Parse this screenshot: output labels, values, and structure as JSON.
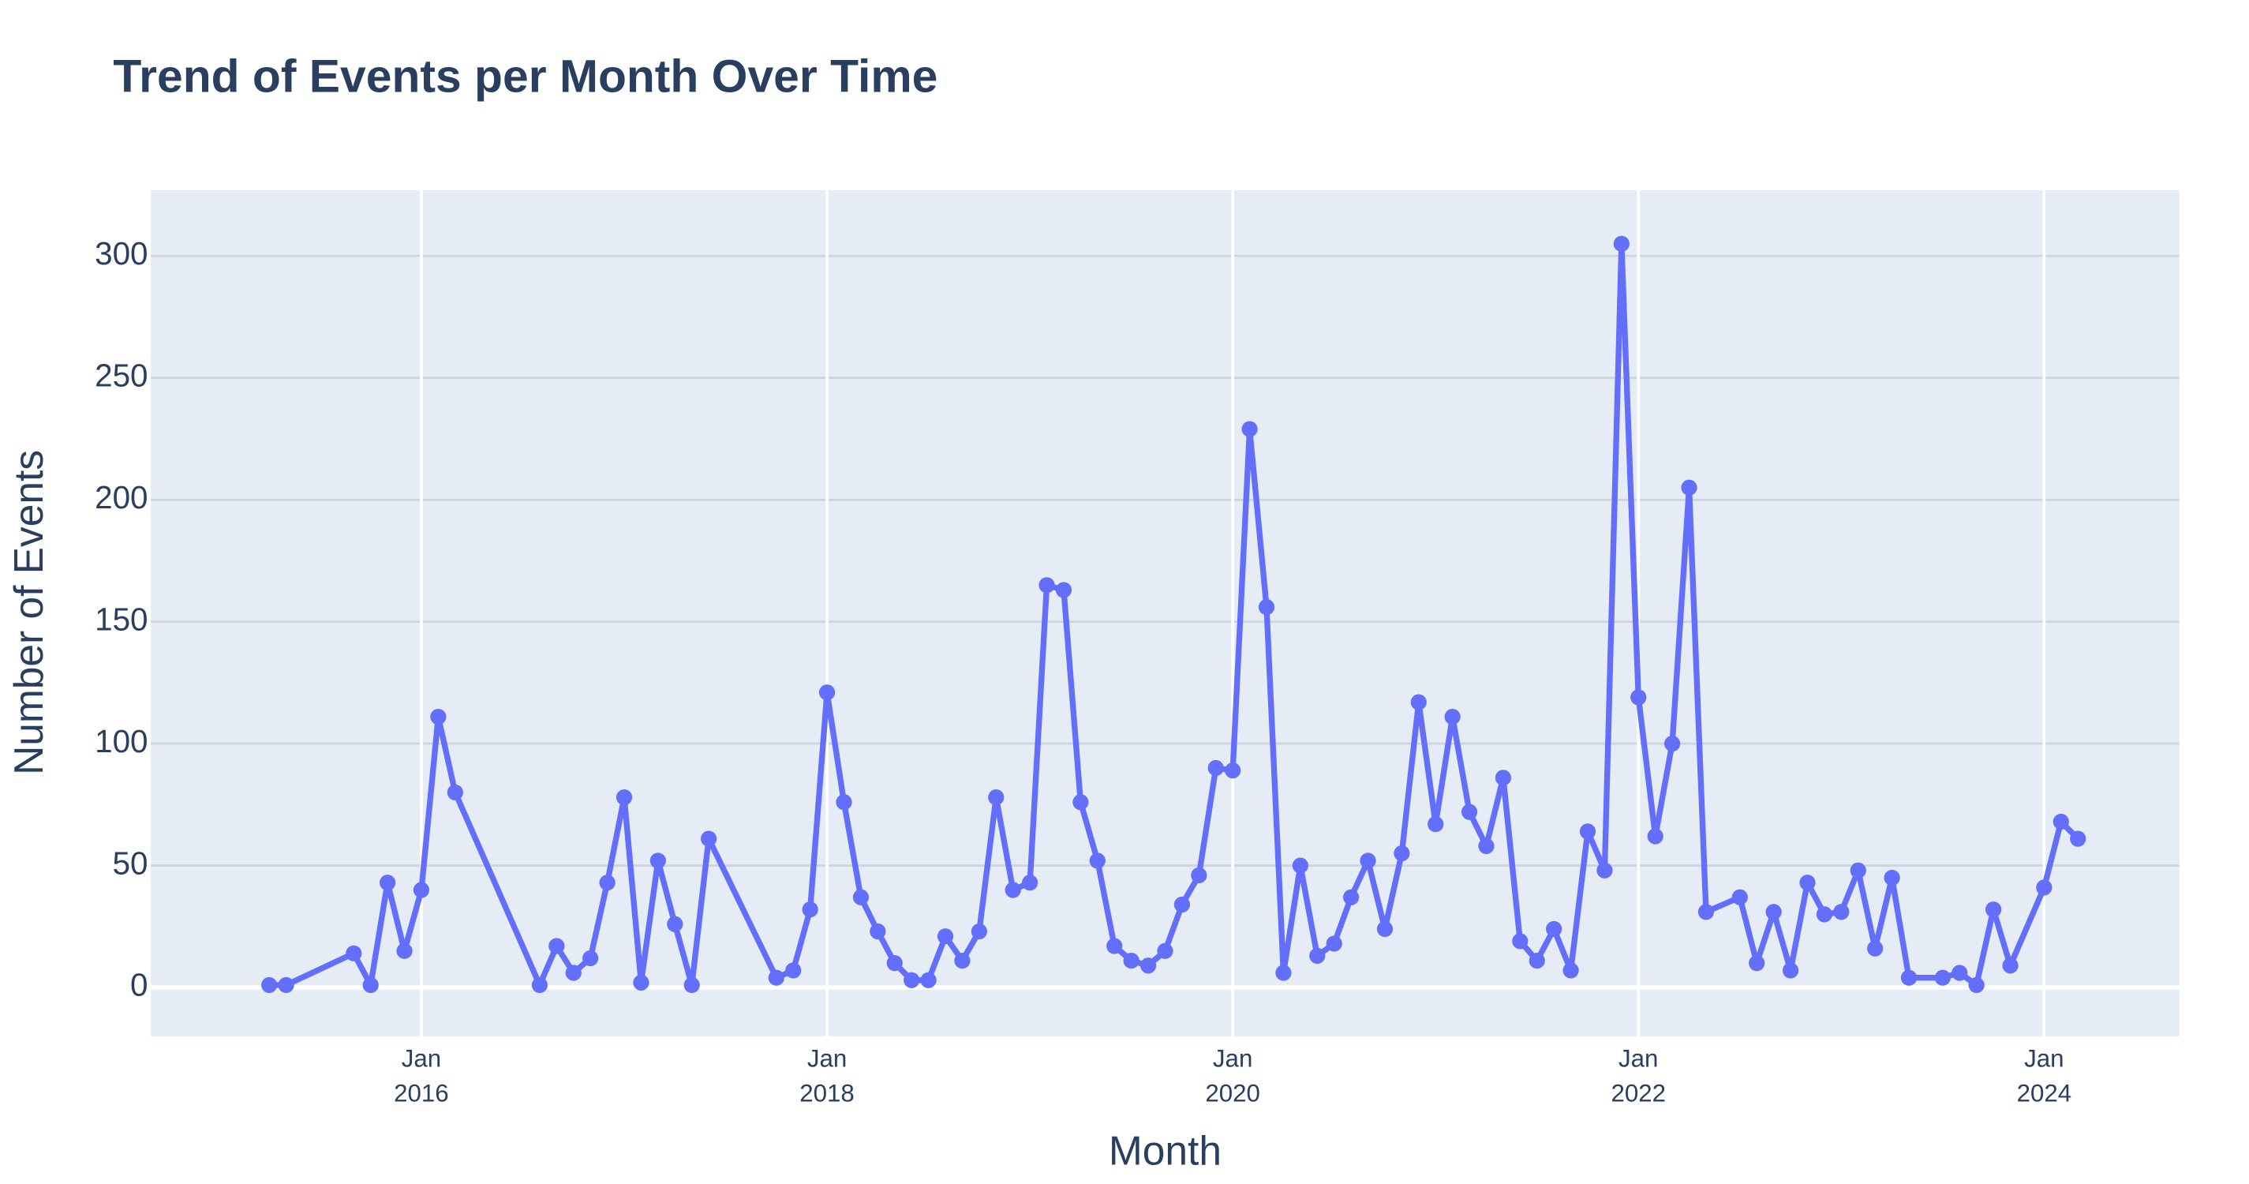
{
  "chart_data": {
    "type": "line",
    "title": "Trend of Events per Month Over Time",
    "x_label": "Month",
    "y_label": "Number of Events",
    "color": "#636efa",
    "grid": true,
    "x": [
      "2015-04",
      "2015-05",
      "2015-09",
      "2015-10",
      "2015-11",
      "2015-12",
      "2016-01",
      "2016-02",
      "2016-03",
      "2016-08",
      "2016-09",
      "2016-10",
      "2016-11",
      "2016-12",
      "2017-01",
      "2017-02",
      "2017-03",
      "2017-04",
      "2017-05",
      "2017-06",
      "2017-10",
      "2017-11",
      "2017-12",
      "2018-01",
      "2018-02",
      "2018-03",
      "2018-04",
      "2018-05",
      "2018-06",
      "2018-07",
      "2018-08",
      "2018-09",
      "2018-10",
      "2018-11",
      "2018-12",
      "2019-01",
      "2019-02",
      "2019-03",
      "2019-04",
      "2019-05",
      "2019-06",
      "2019-07",
      "2019-08",
      "2019-09",
      "2019-10",
      "2019-11",
      "2019-12",
      "2020-01",
      "2020-02",
      "2020-03",
      "2020-04",
      "2020-05",
      "2020-06",
      "2020-07",
      "2020-08",
      "2020-09",
      "2020-10",
      "2020-11",
      "2020-12",
      "2021-01",
      "2021-02",
      "2021-03",
      "2021-04",
      "2021-05",
      "2021-06",
      "2021-07",
      "2021-08",
      "2021-09",
      "2021-10",
      "2021-11",
      "2021-12",
      "2022-01",
      "2022-02",
      "2022-03",
      "2022-04",
      "2022-05",
      "2022-07",
      "2022-08",
      "2022-09",
      "2022-10",
      "2022-11",
      "2022-12",
      "2023-01",
      "2023-02",
      "2023-03",
      "2023-04",
      "2023-05",
      "2023-07",
      "2023-08",
      "2023-09",
      "2023-10",
      "2023-11",
      "2024-01",
      "2024-02",
      "2024-03"
    ],
    "values": [
      1,
      1,
      14,
      1,
      43,
      15,
      40,
      111,
      80,
      1,
      17,
      6,
      12,
      43,
      78,
      2,
      52,
      26,
      1,
      61,
      4,
      7,
      32,
      121,
      76,
      37,
      23,
      10,
      3,
      3,
      21,
      11,
      23,
      78,
      40,
      43,
      165,
      163,
      76,
      52,
      17,
      11,
      9,
      15,
      34,
      46,
      90,
      89,
      229,
      156,
      6,
      50,
      13,
      18,
      37,
      52,
      24,
      55,
      117,
      67,
      111,
      72,
      58,
      86,
      19,
      11,
      24,
      7,
      64,
      48,
      305,
      119,
      62,
      100,
      205,
      31,
      37,
      10,
      31,
      7,
      43,
      30,
      31,
      48,
      16,
      45,
      4,
      4,
      6,
      1,
      32,
      9,
      41,
      68,
      61
    ],
    "xlim": [
      "2014-09",
      "2024-09"
    ],
    "xticks": [
      {
        "value": "2016-01",
        "label": "Jan\n2016"
      },
      {
        "value": "2018-01",
        "label": "Jan\n2018"
      },
      {
        "value": "2020-01",
        "label": "Jan\n2020"
      },
      {
        "value": "2022-01",
        "label": "Jan\n2022"
      },
      {
        "value": "2024-01",
        "label": "Jan\n2024"
      }
    ],
    "ylim": [
      -20,
      327
    ],
    "yticks": [
      0,
      50,
      100,
      150,
      200,
      250,
      300
    ]
  }
}
